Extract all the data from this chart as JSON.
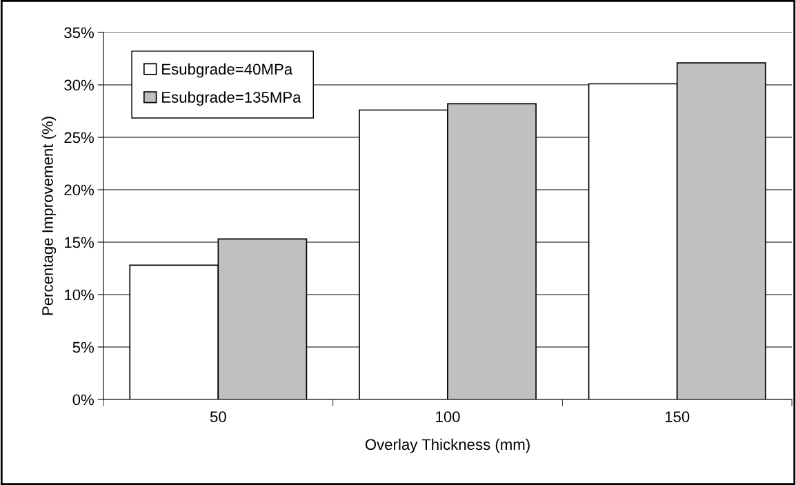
{
  "chart_data": {
    "type": "bar",
    "xlabel": "Overlay Thickness (mm)",
    "ylabel": "Percentage Improvement (%)",
    "categories": [
      "50",
      "100",
      "150"
    ],
    "series": [
      {
        "name": "Esubgrade=40MPa",
        "color": "#ffffff",
        "values": [
          12.8,
          27.6,
          30.1
        ]
      },
      {
        "name": "Esubgrade=135MPa",
        "color": "#c0c0c0",
        "values": [
          15.3,
          28.2,
          32.1
        ]
      }
    ],
    "ylim": [
      0,
      35
    ],
    "yticks": [
      {
        "value": 0,
        "label": "0%"
      },
      {
        "value": 5,
        "label": "5%"
      },
      {
        "value": 10,
        "label": "10%"
      },
      {
        "value": 15,
        "label": "15%"
      },
      {
        "value": 20,
        "label": "20%"
      },
      {
        "value": 25,
        "label": "25%"
      },
      {
        "value": 30,
        "label": "30%"
      },
      {
        "value": 35,
        "label": "35%"
      }
    ],
    "grid": "y",
    "legend": "top left"
  }
}
